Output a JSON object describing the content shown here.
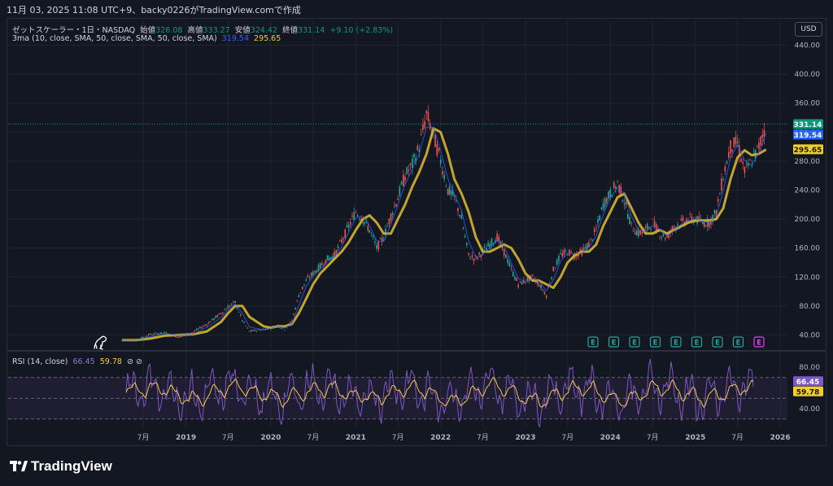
{
  "header": {
    "title_line": "11月 03, 2025 11:08 UTC+9、backy0226がTradingView.comで作成"
  },
  "legend": {
    "symbol": "ゼットスケーラー・1日・NASDAQ",
    "open_label": "始値",
    "open": "326.08",
    "high_label": "高値",
    "high": "333.27",
    "low_label": "安値",
    "low": "324.42",
    "close_label": "終値",
    "close": "331.14",
    "change": "+9.10 (+2.83%)",
    "ma_label": "3ma (10, close, SMA, 50, close, SMA, 50, close, SMA)",
    "ma1": "319.54",
    "ma2": "295.65",
    "rsi_label": "RSI (14, close)",
    "rsi_value": "66.45",
    "rsi_ma": "59.78",
    "rsi_icons": "⊘ ⊘"
  },
  "currency_button": "USD",
  "footer": {
    "brand": "TradingView"
  },
  "colors": {
    "background": "#131722",
    "up": "#26a69a",
    "down": "#ef5350",
    "ma_fast": "#2962ff",
    "ma_slow": "#d6b52e",
    "rsi": "#7e57c2",
    "rsi_ma": "#f7c948",
    "price_tag": "#089981"
  },
  "chart_data": [
    {
      "type": "line",
      "name": "price",
      "x_ticks": [
        "7月",
        "2019",
        "7月",
        "2020",
        "7月",
        "2021",
        "7月",
        "2022",
        "7月",
        "2023",
        "7月",
        "2024",
        "7月",
        "2025",
        "7月",
        "2026"
      ],
      "x_tick_dates": [
        "2018-07",
        "2019-01",
        "2019-07",
        "2020-01",
        "2020-07",
        "2021-01",
        "2021-07",
        "2022-01",
        "2022-07",
        "2023-01",
        "2023-07",
        "2024-01",
        "2024-07",
        "2025-01",
        "2025-07",
        "2026-01"
      ],
      "y_ticks": [
        "440.00",
        "400.00",
        "360.00",
        "320.00",
        "280.00",
        "240.00",
        "200.00",
        "160.00",
        "120.00",
        "80.00",
        "40.00"
      ],
      "y_tick_values": [
        440,
        400,
        360,
        320,
        280,
        240,
        200,
        160,
        120,
        80,
        40
      ],
      "ylim": [
        30,
        445
      ],
      "scale": "linear",
      "grid": true,
      "price_dates": [
        "2018-04",
        "2018-06",
        "2018-08",
        "2018-10",
        "2018-12",
        "2019-02",
        "2019-04",
        "2019-06",
        "2019-07",
        "2019-08",
        "2019-09",
        "2019-10",
        "2019-12",
        "2020-01",
        "2020-02",
        "2020-03",
        "2020-04",
        "2020-05",
        "2020-06",
        "2020-07",
        "2020-08",
        "2020-09",
        "2020-10",
        "2020-11",
        "2020-12",
        "2021-01",
        "2021-02",
        "2021-03",
        "2021-04",
        "2021-05",
        "2021-06",
        "2021-07",
        "2021-08",
        "2021-09",
        "2021-10",
        "2021-11",
        "2021-12",
        "2022-01",
        "2022-02",
        "2022-03",
        "2022-04",
        "2022-05",
        "2022-06",
        "2022-07",
        "2022-08",
        "2022-09",
        "2022-10",
        "2022-11",
        "2022-12",
        "2023-01",
        "2023-02",
        "2023-03",
        "2023-04",
        "2023-05",
        "2023-06",
        "2023-07",
        "2023-08",
        "2023-09",
        "2023-10",
        "2023-11",
        "2023-12",
        "2024-01",
        "2024-02",
        "2024-03",
        "2024-04",
        "2024-05",
        "2024-06",
        "2024-07",
        "2024-08",
        "2024-09",
        "2024-10",
        "2024-11",
        "2024-12",
        "2025-01",
        "2025-02",
        "2025-03",
        "2025-04",
        "2025-05",
        "2025-06",
        "2025-07",
        "2025-08",
        "2025-09",
        "2025-10",
        "2025-11"
      ],
      "price_values": [
        33,
        33,
        41,
        43,
        37,
        44,
        55,
        70,
        79,
        85,
        60,
        45,
        48,
        50,
        53,
        48,
        60,
        95,
        115,
        125,
        135,
        145,
        150,
        170,
        190,
        210,
        200,
        185,
        160,
        175,
        205,
        230,
        260,
        275,
        300,
        345,
        315,
        280,
        240,
        230,
        200,
        150,
        145,
        155,
        165,
        175,
        155,
        130,
        110,
        115,
        120,
        110,
        95,
        130,
        150,
        155,
        150,
        155,
        165,
        185,
        220,
        235,
        250,
        225,
        190,
        180,
        185,
        195,
        180,
        175,
        190,
        195,
        200,
        200,
        195,
        195,
        210,
        260,
        300,
        305,
        265,
        280,
        300,
        331
      ],
      "series": [
        {
          "name": "3ma 10",
          "last": 319.54
        },
        {
          "name": "3ma 50",
          "last": 295.65,
          "values": [
            33,
            33,
            35,
            39,
            40,
            41,
            45,
            58,
            70,
            80,
            80,
            65,
            52,
            50,
            52,
            52,
            55,
            70,
            90,
            110,
            125,
            135,
            145,
            155,
            168,
            185,
            200,
            205,
            195,
            180,
            180,
            200,
            220,
            245,
            265,
            290,
            325,
            320,
            290,
            255,
            235,
            210,
            175,
            155,
            155,
            160,
            165,
            160,
            145,
            125,
            115,
            115,
            110,
            105,
            120,
            140,
            150,
            155,
            155,
            165,
            190,
            210,
            230,
            235,
            215,
            195,
            180,
            180,
            185,
            180,
            185,
            190,
            195,
            198,
            198,
            198,
            200,
            215,
            255,
            285,
            295,
            288,
            290,
            296
          ]
        }
      ],
      "last_price": 331.14,
      "earnings_markers": 9
    },
    {
      "type": "line",
      "name": "RSI (14, close)",
      "y_ticks": [
        "80.00",
        "40.00"
      ],
      "y_tick_values": [
        80,
        40
      ],
      "ylim": [
        20,
        90
      ],
      "bands": [
        70,
        50,
        30
      ],
      "series": [
        {
          "name": "RSI",
          "last": 66.45
        },
        {
          "name": "RSI MA",
          "last": 59.78
        }
      ]
    }
  ]
}
